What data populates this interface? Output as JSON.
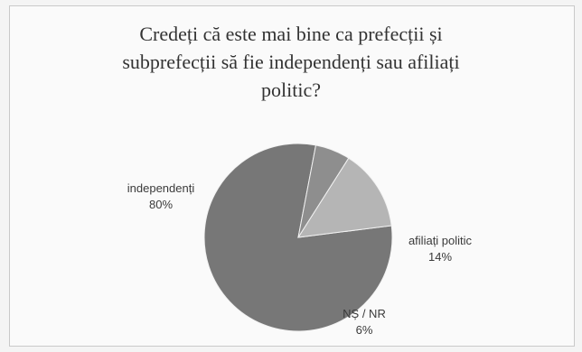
{
  "chart_data": {
    "type": "pie",
    "title_lines": [
      "Credeți că este mai bine ca prefecții și",
      "subprefecții să fie independenți sau afiliați",
      "politic?"
    ],
    "slices": [
      {
        "label": "independenți",
        "value": 80,
        "value_label": "80%",
        "color": "#777777"
      },
      {
        "label": "afiliați politic",
        "value": 14,
        "value_label": "14%",
        "color": "#b5b5b5"
      },
      {
        "label": "NȘ / NR",
        "value": 6,
        "value_label": "6%",
        "color": "#8e8e8e"
      }
    ],
    "legend": "none",
    "labels": "outside"
  }
}
